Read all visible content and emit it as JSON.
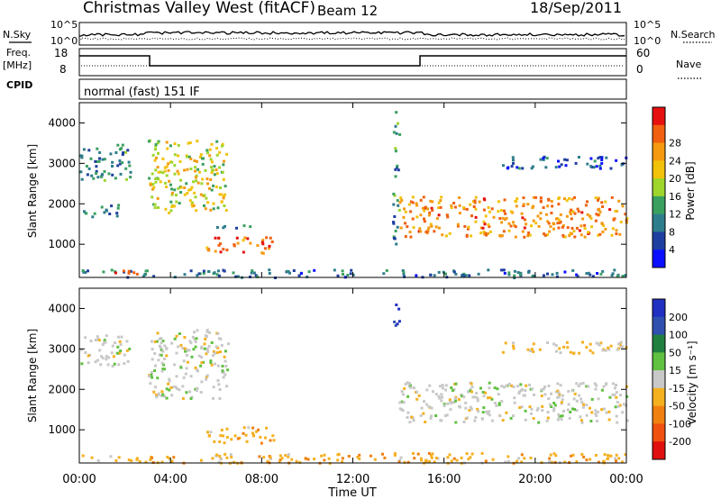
{
  "header": {
    "station": "Christmas Valley West (fitACF)",
    "beam": "Beam 12",
    "date": "18/Sep/2011"
  },
  "top_panels": {
    "nsky_label": "N.Sky",
    "nsky_ticks": [
      "10^5",
      "10^0"
    ],
    "nsearch_label": "N.Search",
    "nsearch_ticks": [
      "10^5",
      "10^0"
    ],
    "freq_label_1": "Freq.",
    "freq_label_2": "[MHz]",
    "freq_ticks": [
      "18",
      "8"
    ],
    "nave_label": "Nave",
    "nave_ticks": [
      "60",
      "0"
    ],
    "cpid_label": "CPID",
    "cpid_value": "normal (fast) 151 IF"
  },
  "x_axis": {
    "label": "Time UT",
    "ticks": [
      "00:00",
      "04:00",
      "08:00",
      "12:00",
      "16:00",
      "20:00",
      "00:00"
    ]
  },
  "colors": {
    "power_scale": [
      "#0a10ff",
      "#1f3fa0",
      "#2e7d8c",
      "#3aa060",
      "#9ed62c",
      "#f2c20a",
      "#f59a10",
      "#f06010",
      "#e61010"
    ],
    "velocity_scale": [
      "#2030c0",
      "#3050b0",
      "#208040",
      "#60c040",
      "#c8c8c8",
      "#f5b020",
      "#f08010",
      "#f05010",
      "#e01010"
    ]
  },
  "chart_data": [
    {
      "type": "heatmap",
      "title": "Power",
      "ylabel": "Slant Range [km]",
      "xlabel": "",
      "x_range_hours": [
        0,
        24
      ],
      "ylim": [
        180,
        4500
      ],
      "y_ticks": [
        1000,
        2000,
        3000,
        4000
      ],
      "colorbar": {
        "label": "Power [dB]",
        "range": [
          0,
          32
        ],
        "ticks": [
          "4",
          "8",
          "12",
          "16",
          "20",
          "24",
          "28"
        ]
      },
      "features": [
        {
          "name": "ground scatter band",
          "t_start": 0,
          "t_end": 24,
          "range_start": 200,
          "range_end": 400,
          "value": 8
        },
        {
          "name": "strong low echo",
          "t_start": 1.5,
          "t_end": 2.8,
          "range_start": 280,
          "range_end": 380,
          "value": 28
        },
        {
          "name": "early arc upper",
          "t_start": 0,
          "t_end": 2.2,
          "range_start": 2600,
          "range_end": 3500,
          "value": 10
        },
        {
          "name": "early arc lower",
          "t_start": 0,
          "t_end": 1.8,
          "range_start": 1700,
          "range_end": 2000,
          "value": 8
        },
        {
          "name": "rising arc",
          "t_start": 3.0,
          "t_end": 6.5,
          "range_start": 1800,
          "range_end": 3600,
          "value": 18
        },
        {
          "name": "mid echo",
          "t_start": 6.0,
          "t_end": 7.8,
          "range_start": 1400,
          "range_end": 1500,
          "value": 10
        },
        {
          "name": "descending echo",
          "t_start": 5.5,
          "t_end": 8.5,
          "range_start": 800,
          "range_end": 1200,
          "value": 26
        },
        {
          "name": "spike",
          "t_start": 13.7,
          "t_end": 14.0,
          "range_start": 1000,
          "range_end": 4300,
          "value": 10
        },
        {
          "name": "afternoon band",
          "t_start": 14.0,
          "t_end": 24,
          "range_start": 1200,
          "range_end": 2200,
          "value": 24
        },
        {
          "name": "late high echo",
          "t_start": 18.5,
          "t_end": 24,
          "range_start": 2900,
          "range_end": 3200,
          "value": 6
        }
      ]
    },
    {
      "type": "heatmap",
      "title": "Velocity",
      "ylabel": "Slant Range [km]",
      "xlabel": "Time UT",
      "x_range_hours": [
        0,
        24
      ],
      "ylim": [
        180,
        4500
      ],
      "y_ticks": [
        1000,
        2000,
        3000,
        4000
      ],
      "colorbar": {
        "label": "Velocity [m s⁻¹]",
        "range": [
          -250,
          250
        ],
        "ticks": [
          "200",
          "100",
          "50",
          "15",
          "-15",
          "-50",
          "-100",
          "-200"
        ]
      },
      "features": [
        {
          "name": "ground scatter band",
          "t_start": 0,
          "t_end": 24,
          "range_start": 200,
          "range_end": 450,
          "value": -60
        },
        {
          "name": "early arc",
          "t_start": 0,
          "t_end": 2.2,
          "range_start": 2600,
          "range_end": 3400,
          "value": 0
        },
        {
          "name": "rising arc",
          "t_start": 3.0,
          "t_end": 6.5,
          "range_start": 1800,
          "range_end": 3500,
          "value": 0
        },
        {
          "name": "descending echo",
          "t_start": 5.5,
          "t_end": 8.5,
          "range_start": 700,
          "range_end": 1100,
          "value": -60
        },
        {
          "name": "spike",
          "t_start": 13.7,
          "t_end": 14.0,
          "range_start": 3600,
          "range_end": 4300,
          "value": 200
        },
        {
          "name": "afternoon band",
          "t_start": 14.0,
          "t_end": 24,
          "range_start": 1200,
          "range_end": 2200,
          "value": 0
        },
        {
          "name": "late high echo",
          "t_start": 18.5,
          "t_end": 24,
          "range_start": 2900,
          "range_end": 3200,
          "value": -40
        }
      ]
    }
  ]
}
